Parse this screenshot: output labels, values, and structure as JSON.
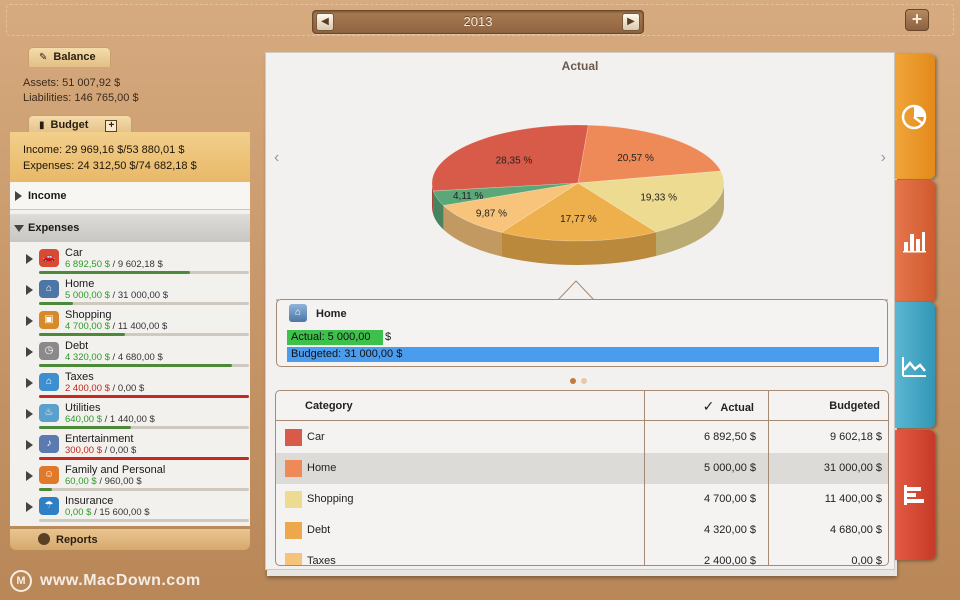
{
  "header": {
    "year": "2013",
    "prev_label": "◀",
    "next_label": "▶",
    "add_label": "+"
  },
  "sidebar": {
    "balance": {
      "title": "Balance",
      "assets": "Assets: 51 007,92 $",
      "liabilities": "Liabilities: 146 765,00 $"
    },
    "budget": {
      "title": "Budget",
      "add_label": "+",
      "income": "Income: 29 969,16 $/53 880,01 $",
      "expenses": "Expenses: 24 312,50 $/74 682,18 $"
    },
    "groups": {
      "income": "Income",
      "expenses": "Expenses"
    },
    "expense_items": [
      {
        "name": "Car",
        "actual": "6 892,50 $",
        "budgeted": "/ 9 602,18 $",
        "progress": 0.72,
        "over": false,
        "icon": "car-icon",
        "color": "#d94a32"
      },
      {
        "name": "Home",
        "actual": "5 000,00 $",
        "budgeted": "/ 31 000,00 $",
        "progress": 0.16,
        "over": false,
        "icon": "house-icon",
        "color": "#4c76a5"
      },
      {
        "name": "Shopping",
        "actual": "4 700,00 $",
        "budgeted": "/ 11 400,00 $",
        "progress": 0.41,
        "over": false,
        "icon": "shopping-bag-icon",
        "color": "#d88a2a"
      },
      {
        "name": "Debt",
        "actual": "4 320,00 $",
        "budgeted": "/ 4 680,00 $",
        "progress": 0.92,
        "over": false,
        "icon": "clock-icon",
        "color": "#8a8a8a"
      },
      {
        "name": "Taxes",
        "actual": "2 400,00 $",
        "budgeted": "/ 0,00 $",
        "progress": 1.0,
        "over": true,
        "icon": "bank-icon",
        "color": "#3d8fd0"
      },
      {
        "name": "Utilities",
        "actual": "640,00 $",
        "budgeted": "/ 1 440,00 $",
        "progress": 0.44,
        "over": false,
        "icon": "faucet-icon",
        "color": "#5aa0cc"
      },
      {
        "name": "Entertainment",
        "actual": "300,00 $",
        "budgeted": "/ 0,00 $",
        "progress": 1.0,
        "over": true,
        "icon": "entertainment-icon",
        "color": "#5a7ab0"
      },
      {
        "name": "Family and Personal",
        "actual": "60,00 $",
        "budgeted": "/ 960,00 $",
        "progress": 0.06,
        "over": false,
        "icon": "family-icon",
        "color": "#e07a2a"
      },
      {
        "name": "Insurance",
        "actual": "0,00 $",
        "budgeted": "/ 15 600,00 $",
        "progress": 0.0,
        "over": false,
        "icon": "umbrella-icon",
        "color": "#2f7fc4"
      }
    ],
    "reports": "Reports"
  },
  "main": {
    "chart_title": "Actual",
    "tooltip": {
      "title": "Home",
      "actual": "Actual: 5 000,00",
      "actual_unit": "$",
      "budgeted": "Budgeted: 31 000,00 $",
      "actual_fraction": 0.161
    },
    "table": {
      "headers": {
        "category": "Category",
        "actual": "Actual",
        "budgeted": "Budgeted"
      },
      "rows": [
        {
          "category": "Car",
          "actual": "6 892,50 $",
          "budgeted": "9 602,18 $",
          "color": "#d85a48",
          "selected": false
        },
        {
          "category": "Home",
          "actual": "5 000,00 $",
          "budgeted": "31 000,00 $",
          "color": "#ee8a58",
          "selected": true
        },
        {
          "category": "Shopping",
          "actual": "4 700,00 $",
          "budgeted": "11 400,00 $",
          "color": "#eedb92",
          "selected": false
        },
        {
          "category": "Debt",
          "actual": "4 320,00 $",
          "budgeted": "4 680,00 $",
          "color": "#eea84c",
          "selected": false
        },
        {
          "category": "Taxes",
          "actual": "2 400,00 $",
          "budgeted": "0,00 $",
          "color": "#f6c37a",
          "selected": false
        }
      ]
    }
  },
  "chart_data": {
    "type": "pie",
    "title": "Actual",
    "slices": [
      {
        "label": "28,35 %",
        "value": 28.35,
        "color": "#d85a48"
      },
      {
        "label": "20,57 %",
        "value": 20.57,
        "color": "#ee8a58"
      },
      {
        "label": "19,33 %",
        "value": 19.33,
        "color": "#eedb92"
      },
      {
        "label": "17,77 %",
        "value": 17.77,
        "color": "#eeb04c"
      },
      {
        "label": "9,87 %",
        "value": 9.87,
        "color": "#f8c47c"
      },
      {
        "label": "4,11 %",
        "value": 4.11,
        "color": "#5aa878"
      }
    ]
  },
  "watermark": "www.MacDown.com",
  "watermark_logo": "M",
  "colors": {
    "accent_orange": "#e38a1a",
    "accent_blue": "#4a9cee",
    "accent_green": "#3ec04d"
  }
}
